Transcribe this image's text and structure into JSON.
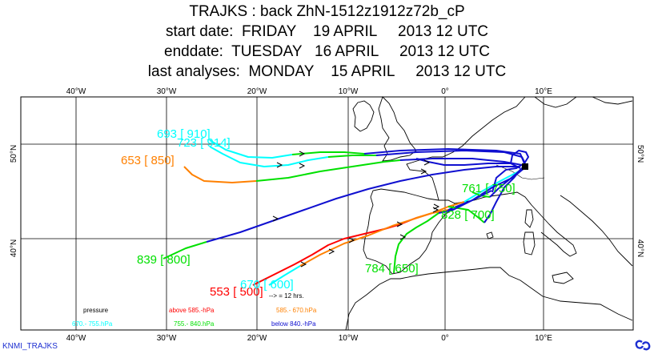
{
  "header": {
    "title": "TRAJKS : back ZhN-1512z1912z72b_cP",
    "start_line": "start date:  FRIDAY    19 APRIL     2013 12 UTC",
    "end_line": "enddate:  TUESDAY   16 APRIL     2013 12 UTC",
    "analyses_line": "last analyses:  MONDAY    15 APRIL     2013 12 UTC"
  },
  "map": {
    "lon_ticks": [
      "40°W",
      "30°W",
      "20°W",
      "10°W",
      "0°",
      "10°E"
    ],
    "lat_ticks": [
      "50°N",
      "40°N"
    ],
    "colors": {
      "frame": "#000000",
      "coast": "#000000",
      "grid": "#000000",
      "above_585": "#ff0000",
      "585_670": "#ff8000",
      "670_755": "#00ffff",
      "755_840": "#00e000",
      "below_840": "#1010d0"
    },
    "start_point": "Zurich marker"
  },
  "trajectories": [
    {
      "label": "693 [ 910]",
      "color": "#00ffff"
    },
    {
      "label": "723 [ 914]",
      "color": "#00ffff"
    },
    {
      "label": "653 [ 850]",
      "color": "#ff8000"
    },
    {
      "label": "761 [ 750]",
      "color": "#00e000"
    },
    {
      "label": "828 [ 700]",
      "color": "#00e000"
    },
    {
      "label": "839 [ 800]",
      "color": "#00e000"
    },
    {
      "label": "784 [ 650]",
      "color": "#00e000"
    },
    {
      "label": "553 [ 500]",
      "color": "#ff0000"
    },
    {
      "label": "670 [ 600]",
      "color": "#00ffff"
    }
  ],
  "arrow_note": "--> = 12 hrs.",
  "legend": {
    "pressure": "pressure",
    "above": "above   585.-hPa",
    "r585_670": "585.-     670.hPa",
    "r670_755": "670.-     755.hPa",
    "r755_840": "755.-     840.hPa",
    "below": "below   840.-hPa"
  },
  "footer": {
    "left": "KNMI_TRAJKS"
  }
}
